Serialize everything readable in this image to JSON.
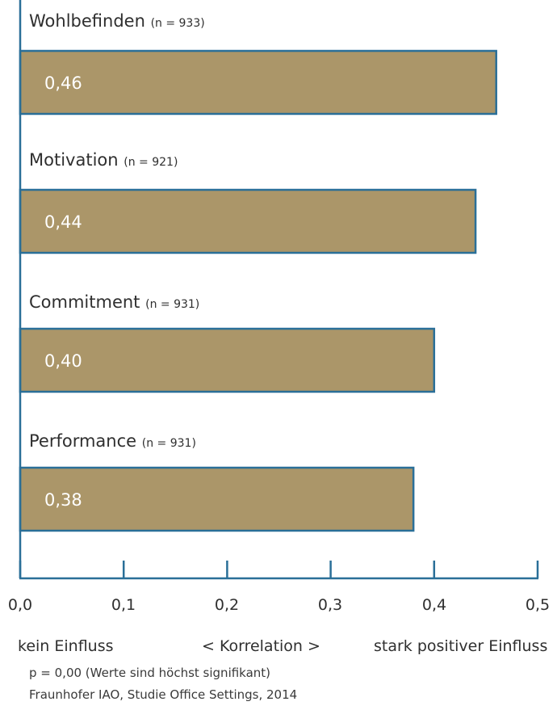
{
  "chart_data": {
    "type": "bar",
    "orientation": "horizontal",
    "categories": [
      "Wohlbefinden",
      "Motivation",
      "Commitment",
      "Performance"
    ],
    "sample_sizes": [
      "(n = 933)",
      "(n = 921)",
      "(n = 931)",
      "(n = 931)"
    ],
    "values": [
      0.46,
      0.44,
      0.4,
      0.38
    ],
    "value_labels": [
      "0,46",
      "0,44",
      "0,40",
      "0,38"
    ],
    "xlim": [
      0,
      0.5
    ],
    "x_ticks": [
      "0,0",
      "0,1",
      "0,2",
      "0,3",
      "0,4",
      "0,5"
    ],
    "bar_color": "#ab9669",
    "bar_border_color": "#2a6f98",
    "axis_color": "#2a6f98",
    "axis_captions": {
      "left": "kein Einfluss",
      "center": "< Korrelation >",
      "right": "stark positiver Einfluss"
    },
    "notes": [
      "p = 0,00 (Werte sind höchst signifikant)",
      "Fraunhofer IAO, Studie Office Settings, 2014"
    ]
  }
}
